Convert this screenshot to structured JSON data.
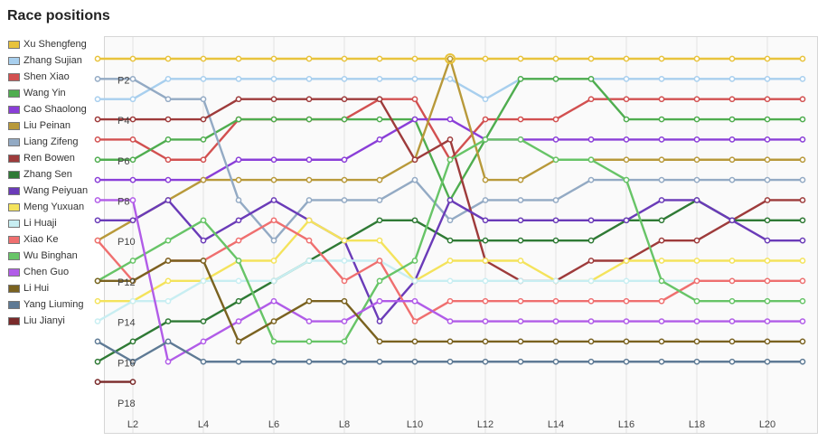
{
  "title": "Race positions",
  "chart_data": {
    "type": "line",
    "title": "Race positions",
    "xlabel": "",
    "ylabel": "",
    "x": [
      "L1",
      "L2",
      "L3",
      "L4",
      "L5",
      "L6",
      "L7",
      "L8",
      "L9",
      "L10",
      "L11",
      "L12",
      "L13",
      "L14",
      "L15",
      "L16",
      "L17",
      "L18",
      "L19",
      "L20",
      "L21"
    ],
    "x_tick_labels": [
      "L2",
      "L4",
      "L6",
      "L8",
      "L10",
      "L12",
      "L14",
      "L16",
      "L18",
      "L20"
    ],
    "y_tick_labels": [
      "P2",
      "P4",
      "P6",
      "P8",
      "P10",
      "P12",
      "P14",
      "P16",
      "P18"
    ],
    "y_range": [
      1,
      18
    ],
    "y_reversed": true,
    "grid": true,
    "legend_position": "left",
    "series": [
      {
        "name": "Xu Shengfeng",
        "color": "#e8c33c",
        "values": [
          1,
          1,
          1,
          1,
          1,
          1,
          1,
          1,
          1,
          1,
          1,
          1,
          1,
          1,
          1,
          1,
          1,
          1,
          1,
          1,
          1
        ]
      },
      {
        "name": "Zhang Sujian",
        "color": "#a8cfee",
        "values": [
          3,
          3,
          2,
          2,
          2,
          2,
          2,
          2,
          2,
          2,
          2,
          3,
          2,
          2,
          2,
          2,
          2,
          2,
          2,
          2,
          2
        ]
      },
      {
        "name": "Shen Xiao",
        "color": "#d25050",
        "values": [
          5,
          5,
          6,
          6,
          4,
          4,
          4,
          4,
          3,
          3,
          6,
          4,
          4,
          4,
          3,
          3,
          3,
          3,
          3,
          3,
          3
        ]
      },
      {
        "name": "Wang Yin",
        "color": "#4fad4f",
        "values": [
          6,
          6,
          5,
          5,
          4,
          4,
          4,
          4,
          4,
          4,
          8,
          5,
          2,
          2,
          2,
          4,
          4,
          4,
          4,
          4,
          4
        ]
      },
      {
        "name": "Cao Shaolong",
        "color": "#8a3ed8",
        "values": [
          7,
          7,
          7,
          7,
          6,
          6,
          6,
          6,
          5,
          4,
          4,
          5,
          5,
          5,
          5,
          5,
          5,
          5,
          5,
          5,
          5
        ]
      },
      {
        "name": "Liu Peinan",
        "color": "#b8993a",
        "values": [
          10,
          9,
          8,
          7,
          7,
          7,
          7,
          7,
          7,
          6,
          1,
          7,
          7,
          6,
          6,
          6,
          6,
          6,
          6,
          6,
          6
        ]
      },
      {
        "name": "Liang Zifeng",
        "color": "#93aac4",
        "values": [
          2,
          2,
          3,
          3,
          8,
          10,
          8,
          8,
          8,
          7,
          9,
          8,
          8,
          8,
          7,
          7,
          7,
          7,
          7,
          7,
          7
        ]
      },
      {
        "name": "Ren Bowen",
        "color": "#9e3b3b",
        "values": [
          4,
          4,
          4,
          4,
          3,
          3,
          3,
          3,
          3,
          6,
          5,
          11,
          12,
          12,
          11,
          11,
          10,
          10,
          9,
          8,
          8
        ]
      },
      {
        "name": "Zhang Sen",
        "color": "#2f7a35",
        "values": [
          16,
          15,
          14,
          14,
          13,
          12,
          11,
          10,
          9,
          9,
          10,
          10,
          10,
          10,
          10,
          9,
          9,
          8,
          9,
          9,
          9
        ]
      },
      {
        "name": "Wang Peiyuan",
        "color": "#6a3bb8",
        "values": [
          9,
          9,
          8,
          10,
          9,
          8,
          9,
          10,
          14,
          12,
          8,
          9,
          9,
          9,
          9,
          9,
          8,
          8,
          9,
          10,
          10
        ]
      },
      {
        "name": "Meng Yuxuan",
        "color": "#f4e35c",
        "values": [
          13,
          13,
          12,
          12,
          11,
          11,
          9,
          10,
          10,
          12,
          11,
          11,
          11,
          12,
          12,
          11,
          11,
          11,
          11,
          11,
          11
        ]
      },
      {
        "name": "Li Huaji",
        "color": "#c8eef2",
        "values": [
          14,
          13,
          13,
          12,
          12,
          12,
          11,
          11,
          11,
          12,
          12,
          12,
          12,
          12,
          12,
          12,
          12,
          12,
          12,
          12,
          12
        ]
      },
      {
        "name": "Xiao Ke",
        "color": "#ef6f6f",
        "values": [
          10,
          12,
          11,
          11,
          10,
          9,
          10,
          12,
          11,
          14,
          13,
          13,
          13,
          13,
          13,
          13,
          13,
          12,
          12,
          12,
          12
        ]
      },
      {
        "name": "Wu Binghan",
        "color": "#67c467",
        "values": [
          12,
          11,
          10,
          9,
          11,
          15,
          15,
          15,
          12,
          11,
          6,
          5,
          5,
          6,
          6,
          7,
          12,
          13,
          13,
          13,
          13
        ]
      },
      {
        "name": "Chen Guo",
        "color": "#b15ce8",
        "values": [
          8,
          8,
          16,
          15,
          14,
          13,
          14,
          14,
          13,
          13,
          14,
          14,
          14,
          14,
          14,
          14,
          14,
          14,
          14,
          14,
          14
        ]
      },
      {
        "name": "Li Hui",
        "color": "#7a6220",
        "values": [
          12,
          12,
          11,
          11,
          15,
          14,
          13,
          13,
          15,
          15,
          15,
          15,
          15,
          15,
          15,
          15,
          15,
          15,
          15,
          15,
          15
        ]
      },
      {
        "name": "Yang Liuming",
        "color": "#5e7a95",
        "values": [
          15,
          16,
          15,
          16,
          16,
          16,
          16,
          16,
          16,
          16,
          16,
          16,
          16,
          16,
          16,
          16,
          16,
          16,
          16,
          16,
          16
        ]
      },
      {
        "name": "Liu Jianyi",
        "color": "#7a2a2a",
        "values": [
          17,
          17,
          null,
          null,
          null,
          null,
          null,
          null,
          null,
          null,
          null,
          null,
          null,
          null,
          null,
          null,
          null,
          null,
          null,
          null,
          null
        ]
      }
    ]
  }
}
